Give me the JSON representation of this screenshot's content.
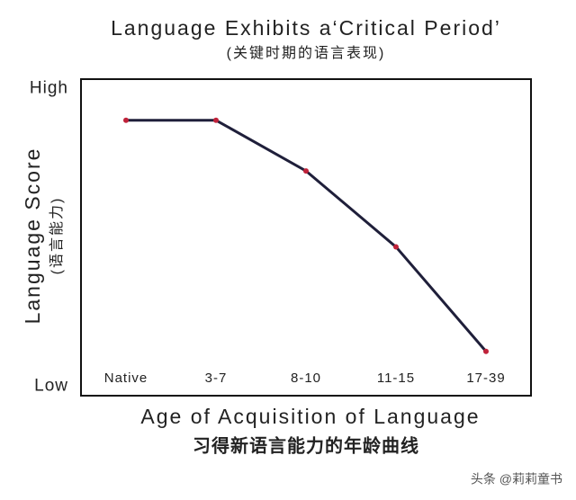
{
  "chart_data": {
    "type": "line",
    "title": "Language Exhibits a‘Critical Period’",
    "subtitle": "(关键时期的语言表现)",
    "y_label": "Language Score",
    "y_label_cn": "(语言能力)",
    "x_label": "Age of Acquisition of Language",
    "x_label_cn": "习得新语言能力的年龄曲线",
    "categories": [
      "Native",
      "3-7",
      "8-10",
      "11-15",
      "17-39"
    ],
    "values": [
      87,
      87,
      71,
      47,
      14
    ],
    "color": "#1f1f3a",
    "marker_color": "#c0223a",
    "ylim": [
      0,
      100
    ],
    "yticks": [
      {
        "value": 97,
        "label": "High"
      },
      {
        "value": 3,
        "label": "Low"
      }
    ],
    "grid": false
  },
  "watermark": "头条 @莉莉童书"
}
